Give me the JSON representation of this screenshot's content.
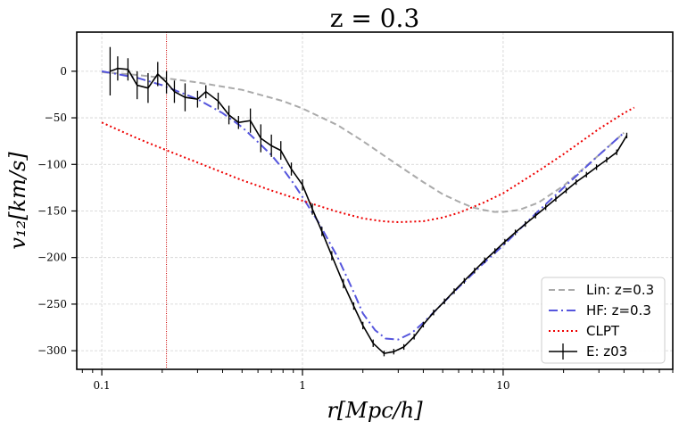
{
  "chart_data": {
    "type": "line",
    "title": "z = 0.3",
    "xlabel": "r[Mpc/h]",
    "ylabel": "v₁₂[km/s]",
    "xscale": "log",
    "xlim": [
      0.075,
      70
    ],
    "ylim": [
      -320,
      42
    ],
    "xticks": [
      0.1,
      1,
      10
    ],
    "xtick_labels": [
      "0.1",
      "1",
      "10"
    ],
    "yticks": [
      0,
      -50,
      -100,
      -150,
      -200,
      -250,
      -300
    ],
    "ytick_labels": [
      "0",
      "−50",
      "−100",
      "−150",
      "−200",
      "−250",
      "−300"
    ],
    "grid": true,
    "legend_position": "bottom-right",
    "vline_x": 0.21,
    "vline_color": "#cc0000",
    "series": [
      {
        "name": "Lin: z=0.3",
        "style": "dashed",
        "color": "#aaaaaa",
        "x": [
          0.1,
          0.15,
          0.2,
          0.3,
          0.5,
          0.8,
          1.0,
          1.5,
          2.0,
          3.0,
          4.0,
          5.0,
          6.0,
          7.0,
          8.0,
          9.0,
          10.0,
          12.0,
          15.0,
          20.0,
          30.0,
          40.0
        ],
        "y": [
          -1,
          -4,
          -7,
          -12,
          -20,
          -32,
          -40,
          -58,
          -75,
          -101,
          -119,
          -132,
          -140,
          -146,
          -149,
          -151,
          -151,
          -149,
          -141,
          -123,
          -90,
          -66
        ]
      },
      {
        "name": "HF: z=0.3",
        "style": "dashdot",
        "color": "#5555dd",
        "x": [
          0.1,
          0.15,
          0.2,
          0.3,
          0.4,
          0.5,
          0.6,
          0.7,
          0.8,
          0.9,
          1.0,
          1.2,
          1.5,
          1.8,
          2.0,
          2.3,
          2.6,
          3.0,
          3.5,
          4.0,
          5.0,
          6.0,
          8.0,
          10.0,
          15.0,
          20.0,
          30.0,
          40.0
        ],
        "y": [
          0,
          -7,
          -15,
          -30,
          -45,
          -60,
          -76,
          -90,
          -105,
          -120,
          -135,
          -162,
          -200,
          -237,
          -260,
          -278,
          -287,
          -288,
          -281,
          -270,
          -249,
          -232,
          -206,
          -187,
          -150,
          -125,
          -90,
          -66
        ]
      },
      {
        "name": "CLPT",
        "style": "dotted",
        "color": "#ee0000",
        "x": [
          0.1,
          0.15,
          0.2,
          0.3,
          0.5,
          0.7,
          1.0,
          1.5,
          2.0,
          2.5,
          3.0,
          4.0,
          5.0,
          6.0,
          8.0,
          10.0,
          15.0,
          20.0,
          30.0,
          40.0,
          45.0
        ],
        "y": [
          -55,
          -72,
          -83,
          -98,
          -117,
          -128,
          -139,
          -151,
          -158,
          -161,
          -162,
          -161,
          -157,
          -152,
          -141,
          -131,
          -107,
          -89,
          -62,
          -45,
          -39
        ]
      },
      {
        "name": "E: z03",
        "style": "solid",
        "color": "#000000",
        "x": [
          0.11,
          0.12,
          0.135,
          0.15,
          0.17,
          0.19,
          0.21,
          0.23,
          0.26,
          0.3,
          0.33,
          0.38,
          0.43,
          0.48,
          0.55,
          0.62,
          0.7,
          0.78,
          0.88,
          1.0,
          1.12,
          1.25,
          1.4,
          1.6,
          1.8,
          2.0,
          2.25,
          2.55,
          2.85,
          3.2,
          3.6,
          4.0,
          4.5,
          5.1,
          5.7,
          6.4,
          7.2,
          8.1,
          9.1,
          10.2,
          11.5,
          12.9,
          14.5,
          16.3,
          18.3,
          20.6,
          23.1,
          26.0,
          29.2,
          32.8,
          36.8,
          41.3
        ],
        "y": [
          0,
          3,
          2,
          -15,
          -18,
          -3,
          -12,
          -22,
          -28,
          -30,
          -22,
          -32,
          -47,
          -55,
          -53,
          -72,
          -80,
          -85,
          -105,
          -122,
          -148,
          -172,
          -198,
          -228,
          -252,
          -273,
          -292,
          -303,
          -301,
          -296,
          -285,
          -272,
          -259,
          -247,
          -236,
          -225,
          -214,
          -203,
          -193,
          -183,
          -173,
          -164,
          -155,
          -146,
          -137,
          -128,
          -119,
          -111,
          -103,
          -95,
          -87,
          -69
        ],
        "yerr": [
          26,
          13,
          12,
          15,
          16,
          13,
          12,
          12,
          15,
          9,
          7,
          9,
          10,
          7,
          13,
          15,
          12,
          10,
          7,
          6,
          6,
          5,
          5,
          5,
          4,
          4,
          4,
          3,
          3,
          3,
          3,
          3,
          3,
          3,
          3,
          3,
          3,
          3,
          3,
          3,
          3,
          3,
          3,
          3,
          3,
          3,
          3,
          3,
          3,
          3,
          3,
          3
        ]
      }
    ]
  }
}
